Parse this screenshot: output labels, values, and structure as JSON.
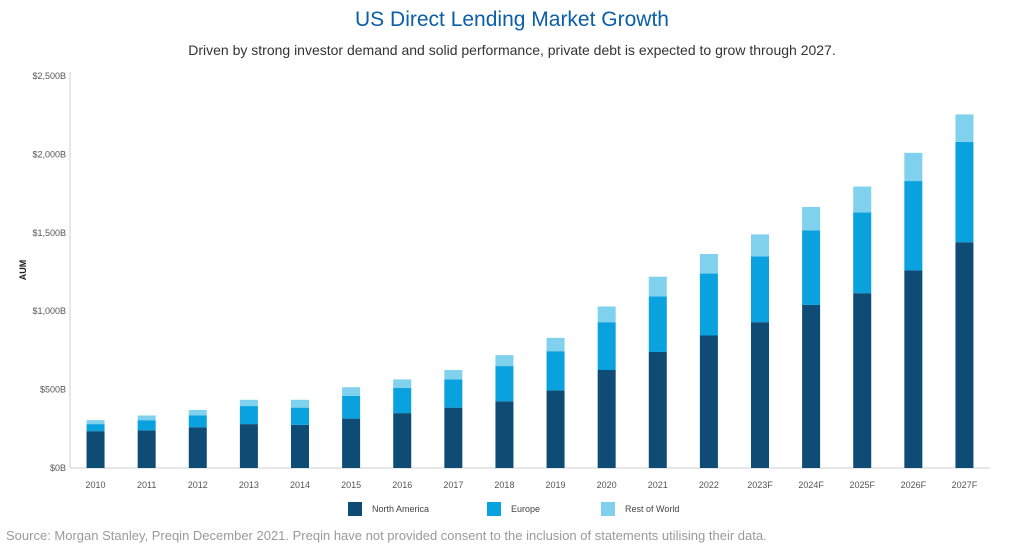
{
  "header": {
    "title": "US Direct Lending Market Growth",
    "subtitle": "Driven by strong investor demand and solid performance, private debt is expected to grow through 2027."
  },
  "footer": {
    "source": "Source: Morgan Stanley, Preqin December 2021. Preqin have not provided consent to the inclusion of statements utilising their data."
  },
  "chart_data": {
    "type": "bar",
    "stacked": true,
    "title": "US Direct Lending Market Growth",
    "xlabel": "",
    "ylabel": "AUM",
    "ylim": [
      0,
      2500
    ],
    "yticks": [
      0,
      500,
      1000,
      1500,
      2000,
      2500
    ],
    "ytick_labels": [
      "$0B",
      "$500B",
      "$1,000B",
      "$1,500B",
      "$2,000B",
      "$2,500B"
    ],
    "grid": false,
    "legend_position": "bottom",
    "categories": [
      "2010",
      "2011",
      "2012",
      "2013",
      "2014",
      "2015",
      "2016",
      "2017",
      "2018",
      "2019",
      "2020",
      "2021",
      "2022",
      "2023F",
      "2024F",
      "2025F",
      "2026F",
      "2027F"
    ],
    "series": [
      {
        "name": "North America",
        "color": "#0e4c75",
        "values": [
          235,
          240,
          260,
          280,
          275,
          315,
          350,
          385,
          425,
          495,
          625,
          740,
          845,
          930,
          1040,
          1115,
          1260,
          1440
        ]
      },
      {
        "name": "Europe",
        "color": "#0aa1df",
        "values": [
          45,
          65,
          75,
          115,
          110,
          145,
          160,
          180,
          225,
          250,
          305,
          355,
          395,
          420,
          475,
          515,
          570,
          640
        ]
      },
      {
        "name": "Rest of World",
        "color": "#7fd1ee",
        "values": [
          25,
          30,
          35,
          40,
          50,
          55,
          55,
          60,
          70,
          85,
          100,
          125,
          125,
          140,
          150,
          165,
          180,
          175
        ]
      }
    ]
  }
}
